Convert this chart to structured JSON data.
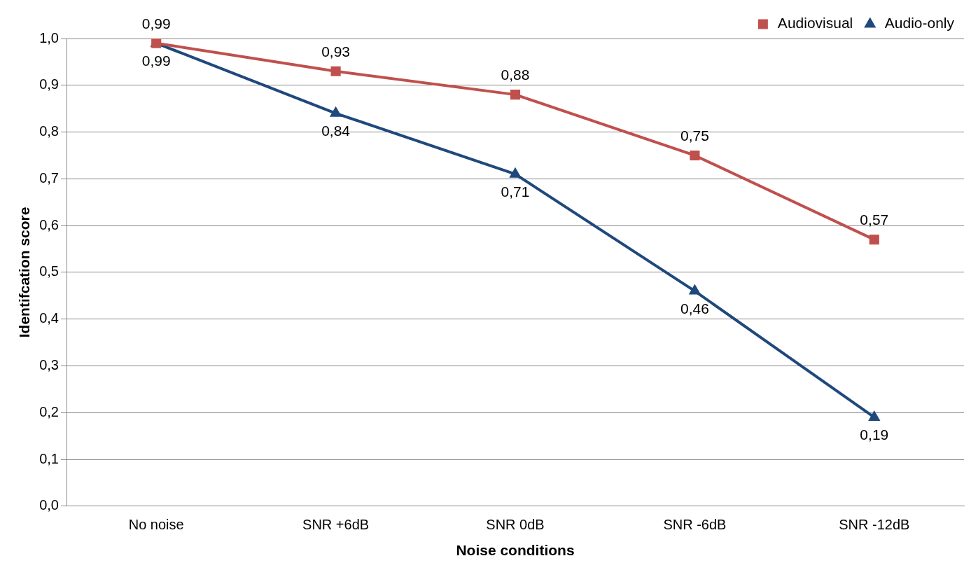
{
  "chart_data": {
    "type": "line",
    "xlabel": "Noise conditions",
    "ylabel": "Identifcation score",
    "categories": [
      "No noise",
      "SNR +6dB",
      "SNR 0dB",
      "SNR -6dB",
      "SNR -12dB"
    ],
    "series": [
      {
        "name": "Audiovisual",
        "color": "#c0504d",
        "marker": "square",
        "values": [
          0.99,
          0.93,
          0.88,
          0.75,
          0.57
        ],
        "value_labels": [
          "0,99",
          "0,93",
          "0,88",
          "0,75",
          "0,57"
        ]
      },
      {
        "name": "Audio-only",
        "color": "#1f497d",
        "marker": "triangle",
        "values": [
          0.99,
          0.84,
          0.71,
          0.46,
          0.19
        ],
        "value_labels": [
          "0,99",
          "0,84",
          "0,71",
          "0,46",
          "0,19"
        ]
      }
    ],
    "ylim": [
      0,
      1
    ],
    "yticks": [
      {
        "value": 0,
        "label": "0,0"
      },
      {
        "value": 0.1,
        "label": "0,1"
      },
      {
        "value": 0.2,
        "label": "0,2"
      },
      {
        "value": 0.3,
        "label": "0,3"
      },
      {
        "value": 0.4,
        "label": "0,4"
      },
      {
        "value": 0.5,
        "label": "0,5"
      },
      {
        "value": 0.6,
        "label": "0,6"
      },
      {
        "value": 0.7,
        "label": "0,7"
      },
      {
        "value": 0.8,
        "label": "0,8"
      },
      {
        "value": 0.9,
        "label": "0,9"
      },
      {
        "value": 1,
        "label": "1,0"
      }
    ],
    "grid": "y",
    "legend": "top right",
    "line_style": "solid"
  }
}
